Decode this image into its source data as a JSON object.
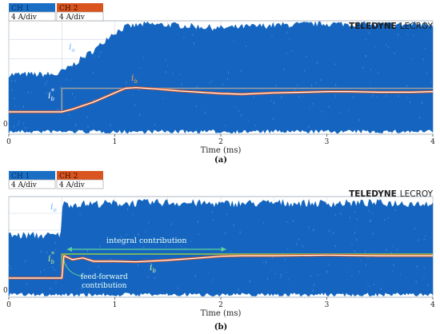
{
  "brand": "TELEDYNE LECROY",
  "brand_bold": "TELEDYNE",
  "brand_light": "LECROY",
  "colors": {
    "ch1": "#1a6fc4",
    "ch1_band": "#1565c0",
    "ch2": "#d9541e",
    "grid": "#cfd8e3",
    "ref_box": "#9e9e9e",
    "ref_box_b": "#8bc34a",
    "current_line": "#ffffff",
    "annotation": "#5fd39a"
  },
  "chart_data": [
    {
      "type": "line",
      "panel_caption": "(a)",
      "legend": [
        {
          "channel": "CH 1",
          "scale": "4 A/div"
        },
        {
          "channel": "CH 2",
          "scale": "4 A/div"
        }
      ],
      "xlabel": "Time (ms)",
      "xlim": [
        0,
        4
      ],
      "x_ticks": [
        "0",
        "1",
        "2",
        "3",
        "4"
      ],
      "y_zero_label": "0",
      "labels": {
        "io": "i",
        "io_sub": "o",
        "ib_ref": "i",
        "ib_ref_sub": "b",
        "ib_ref_sup": "*",
        "ib": "i",
        "ib_sub": "b"
      },
      "series": [
        {
          "name": "io",
          "x": [
            0,
            0.45,
            0.55,
            0.7,
            0.85,
            0.95,
            1.1,
            1.3,
            1.6,
            2.0,
            2.5,
            3.0,
            3.5,
            4.0
          ],
          "y": [
            7.5,
            7.5,
            8.5,
            10.5,
            12.5,
            14.5,
            16.0,
            16.5,
            16.3,
            15.8,
            16.3,
            16.6,
            16.4,
            16.5
          ]
        },
        {
          "name": "ib_ref",
          "x": [
            0,
            0.5,
            0.5,
            4.0
          ],
          "y": [
            0.0,
            0.0,
            3.6,
            3.6
          ]
        },
        {
          "name": "ib",
          "x": [
            0,
            0.5,
            0.6,
            0.8,
            1.0,
            1.1,
            1.2,
            1.4,
            1.6,
            1.8,
            2.0,
            2.2,
            2.5,
            2.8,
            3.0,
            3.2,
            3.5,
            3.8,
            4.0
          ],
          "y": [
            0.0,
            0.0,
            0.4,
            1.5,
            2.9,
            3.6,
            3.7,
            3.5,
            3.2,
            3.0,
            2.8,
            2.7,
            2.9,
            3.0,
            3.1,
            3.1,
            3.0,
            3.0,
            3.1
          ]
        }
      ]
    },
    {
      "type": "line",
      "panel_caption": "(b)",
      "legend": [
        {
          "channel": "CH 1",
          "scale": "4 A/div"
        },
        {
          "channel": "CH 2",
          "scale": "4 A/div"
        }
      ],
      "xlabel": "Time (ms)",
      "xlim": [
        0,
        4
      ],
      "x_ticks": [
        "0",
        "1",
        "2",
        "3",
        "4"
      ],
      "y_zero_label": "0",
      "labels": {
        "io": "i",
        "io_sub": "o",
        "ib_ref": "i",
        "ib_ref_sub": "b",
        "ib_ref_sup": "*",
        "ib": "i",
        "ib_sub": "b"
      },
      "annotations": {
        "integral": "integral contribution",
        "feedforward_1": "feed-forward",
        "feedforward_2": "contribution"
      },
      "series": [
        {
          "name": "io",
          "x": [
            0,
            0.49,
            0.5,
            1.0,
            1.5,
            2.0,
            2.5,
            3.0,
            3.5,
            4.0
          ],
          "y": [
            10.0,
            10.0,
            16.5,
            16.7,
            16.9,
            16.6,
            16.8,
            16.7,
            16.8,
            16.7
          ]
        },
        {
          "name": "ib_ref",
          "x": [
            0,
            0.5,
            0.5,
            4.0
          ],
          "y": [
            0.0,
            0.0,
            4.3,
            4.3
          ]
        },
        {
          "name": "ib",
          "x": [
            0,
            0.5,
            0.52,
            0.6,
            0.7,
            0.8,
            1.0,
            1.2,
            1.5,
            1.8,
            2.0,
            2.2,
            2.5,
            3.0,
            3.5,
            4.0
          ],
          "y": [
            0.0,
            0.0,
            4.0,
            3.3,
            3.6,
            3.0,
            3.0,
            2.9,
            3.2,
            3.6,
            3.9,
            4.0,
            4.0,
            4.1,
            4.0,
            4.0
          ]
        }
      ]
    }
  ]
}
